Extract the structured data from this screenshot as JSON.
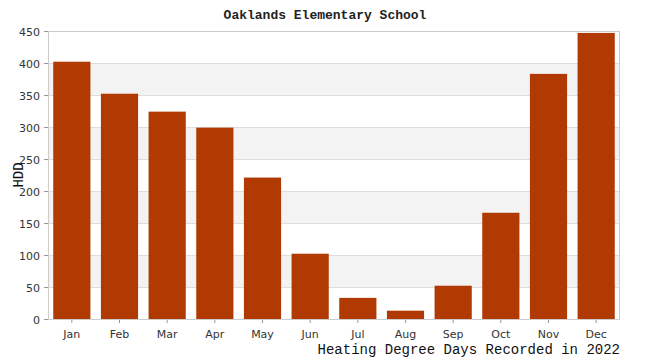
{
  "chart_data": {
    "type": "bar",
    "title": "Oaklands Elementary School",
    "x_label": "Heating Degree Days Recorded in 2022",
    "y_label": "HDD",
    "categories": [
      "Jan",
      "Feb",
      "Mar",
      "Apr",
      "May",
      "Jun",
      "Jul",
      "Aug",
      "Sep",
      "Oct",
      "Nov",
      "Dec"
    ],
    "values": [
      402,
      352,
      324,
      299,
      221,
      102,
      33,
      13,
      52,
      166,
      383,
      447
    ],
    "color": "#b03a02",
    "ylim": [
      0,
      450
    ],
    "yticks": [
      0,
      50,
      100,
      150,
      200,
      250,
      300,
      350,
      400,
      450
    ],
    "grid": true
  }
}
